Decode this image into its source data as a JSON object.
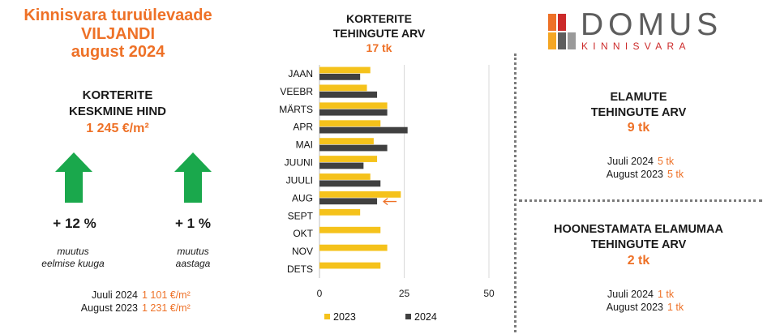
{
  "header": {
    "line1": "Kinnisvara turuülevaade",
    "line2": "VILJANDI",
    "line3": "august 2024"
  },
  "avg_price": {
    "title_line1": "KORTERITE",
    "title_line2": "KESKMINE HIND",
    "value": "1 245 €/m²"
  },
  "changes": [
    {
      "pct": "+ 12 %",
      "note_line1": "muutus",
      "note_line2": "eelmise kuuga",
      "icon": "up-arrow-icon"
    },
    {
      "pct": "+ 1 %",
      "note_line1": "muutus",
      "note_line2": "aastaga",
      "icon": "up-arrow-icon"
    }
  ],
  "price_compare": [
    {
      "label": "Juuli 2024",
      "value": "1 101 €/m²"
    },
    {
      "label": "August 2023",
      "value": "1 231 €/m²"
    }
  ],
  "chart_title": {
    "line1": "KORTERITE",
    "line2": "TEHINGUTE ARV",
    "count": "17 tk"
  },
  "chart_data": {
    "type": "bar",
    "orientation": "horizontal",
    "categories": [
      "JAAN",
      "VEEBR",
      "MÄRTS",
      "APR",
      "MAI",
      "JUUNI",
      "JUULI",
      "AUG",
      "SEPT",
      "OKT",
      "NOV",
      "DETS"
    ],
    "series": [
      {
        "name": "2023",
        "color": "#f5c21b",
        "values": [
          15,
          14,
          20,
          18,
          16,
          17,
          15,
          24,
          12,
          18,
          20,
          18
        ]
      },
      {
        "name": "2024",
        "color": "#404040",
        "values": [
          12,
          17,
          20,
          26,
          20,
          13,
          18,
          17,
          null,
          null,
          null,
          null
        ]
      }
    ],
    "xlim": [
      0,
      50
    ],
    "xticks": [
      "0",
      "25",
      "50"
    ],
    "grid": true,
    "legend": "bottom",
    "highlight_category": "AUG",
    "highlight_marker_color": "#ee7127"
  },
  "houses": {
    "title_line1": "ELAMUTE",
    "title_line2": "TEHINGUTE ARV",
    "count": "9 tk",
    "compare": [
      {
        "label": "Juuli 2024",
        "value": "5 tk"
      },
      {
        "label": "August 2023",
        "value": "5 tk"
      }
    ]
  },
  "land": {
    "title_line1": "HOONESTAMATA ELAMUMAA",
    "title_line2": "TEHINGUTE ARV",
    "count": "2 tk",
    "compare": [
      {
        "label": "Juuli 2024",
        "value": "1 tk"
      },
      {
        "label": "August 2023",
        "value": "1 tk"
      }
    ]
  },
  "logo": {
    "word": "DOMUS",
    "sub": "KINNISVARA"
  },
  "colors": {
    "accent": "#ee7127",
    "arrow_green": "#1aa84c",
    "bar_2023": "#f5c21b",
    "bar_2024": "#404040"
  }
}
